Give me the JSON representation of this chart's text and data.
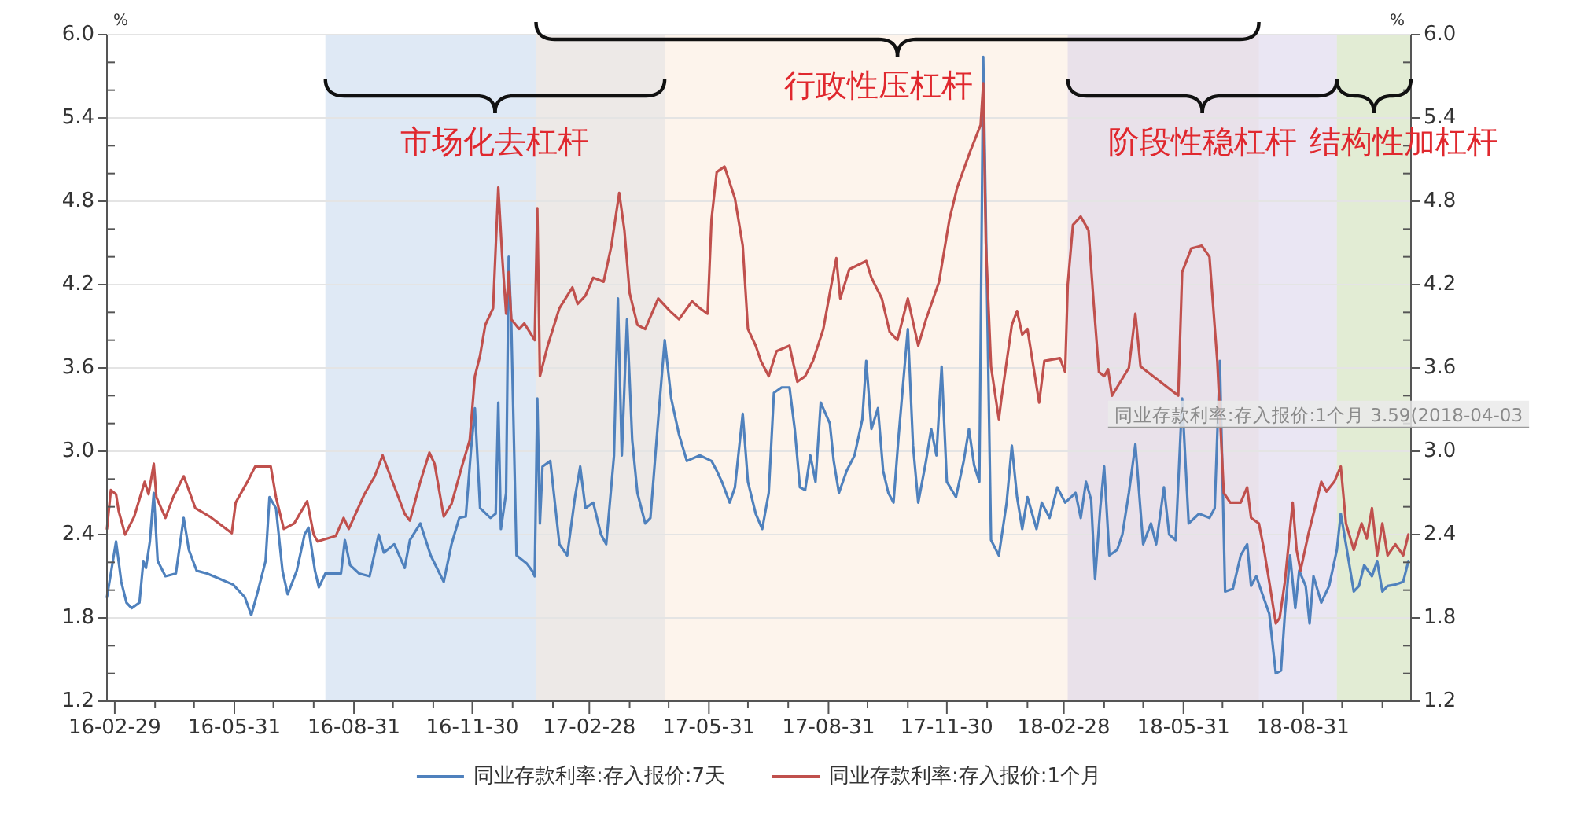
{
  "chart_data": {
    "type": "line",
    "ylabel": "%",
    "y2label": "%",
    "xlim": [
      "2016-02-23",
      "2018-11-22"
    ],
    "ylim": [
      1.2,
      6
    ],
    "y2lim": [
      1.2,
      6
    ],
    "xticks": [
      {
        "value": "2016-02-29",
        "label": "16-02-29"
      },
      {
        "value": "2016-03-31",
        "label": null
      },
      {
        "value": "2016-04-30",
        "label": null
      },
      {
        "value": "2016-05-31",
        "label": "16-05-31"
      },
      {
        "value": "2016-06-30",
        "label": null
      },
      {
        "value": "2016-07-31",
        "label": null
      },
      {
        "value": "2016-08-31",
        "label": "16-08-31"
      },
      {
        "value": "2016-09-30",
        "label": null
      },
      {
        "value": "2016-10-31",
        "label": null
      },
      {
        "value": "2016-11-30",
        "label": "16-11-30"
      },
      {
        "value": "2016-12-31",
        "label": null
      },
      {
        "value": "2017-01-31",
        "label": null
      },
      {
        "value": "2017-02-28",
        "label": "17-02-28"
      },
      {
        "value": "2017-03-31",
        "label": null
      },
      {
        "value": "2017-04-30",
        "label": null
      },
      {
        "value": "2017-05-31",
        "label": "17-05-31"
      },
      {
        "value": "2017-06-30",
        "label": null
      },
      {
        "value": "2017-07-31",
        "label": null
      },
      {
        "value": "2017-08-31",
        "label": "17-08-31"
      },
      {
        "value": "2017-09-30",
        "label": null
      },
      {
        "value": "2017-10-31",
        "label": null
      },
      {
        "value": "2017-11-30",
        "label": "17-11-30"
      },
      {
        "value": "2017-12-31",
        "label": null
      },
      {
        "value": "2018-01-31",
        "label": null
      },
      {
        "value": "2018-02-28",
        "label": "18-02-28"
      },
      {
        "value": "2018-03-31",
        "label": null
      },
      {
        "value": "2018-04-30",
        "label": null
      },
      {
        "value": "2018-05-31",
        "label": "18-05-31"
      },
      {
        "value": "2018-06-30",
        "label": null
      },
      {
        "value": "2018-07-31",
        "label": null
      },
      {
        "value": "2018-08-31",
        "label": "18-08-31"
      },
      {
        "value": "2018-09-30",
        "label": null
      },
      {
        "value": "2018-10-31",
        "label": null
      }
    ],
    "yticks": [
      1.2,
      {
        "value": 1.4,
        "label": null
      },
      {
        "value": 1.6,
        "label": null
      },
      1.8,
      {
        "value": 2.0,
        "label": null
      },
      {
        "value": 2.2,
        "label": null
      },
      2.4,
      {
        "value": 2.6,
        "label": null
      },
      {
        "value": 2.8,
        "label": null
      },
      {
        "value": 3,
        "label": "3.0"
      },
      {
        "value": 3.2,
        "label": null
      },
      {
        "value": 3.4,
        "label": null
      },
      3.6,
      {
        "value": 3.8,
        "label": null
      },
      {
        "value": 4.0,
        "label": null
      },
      4.2,
      {
        "value": 4.4,
        "label": null
      },
      {
        "value": 4.6,
        "label": null
      },
      4.8,
      {
        "value": 5.0,
        "label": null
      },
      {
        "value": 5.2,
        "label": null
      },
      5.4,
      {
        "value": 5.6,
        "label": null
      },
      {
        "value": 5.8,
        "label": null
      },
      {
        "value": 6,
        "label": "6.0"
      }
    ],
    "y2ticks": [
      1.2,
      {
        "value": 1.4,
        "label": null
      },
      {
        "value": 1.6,
        "label": null
      },
      1.8,
      {
        "value": 2.0,
        "label": null
      },
      {
        "value": 2.2,
        "label": null
      },
      2.4,
      {
        "value": 2.6,
        "label": null
      },
      {
        "value": 2.8,
        "label": null
      },
      {
        "value": 3,
        "label": "3.0"
      },
      {
        "value": 3.2,
        "label": null
      },
      {
        "value": 3.4,
        "label": null
      },
      3.6,
      {
        "value": 3.8,
        "label": null
      },
      {
        "value": 4.0,
        "label": null
      },
      4.2,
      {
        "value": 4.4,
        "label": null
      },
      {
        "value": 4.6,
        "label": null
      },
      4.8,
      {
        "value": 5.0,
        "label": null
      },
      {
        "value": 5.2,
        "label": null
      },
      5.4,
      {
        "value": 5.6,
        "label": null
      },
      {
        "value": 5.8,
        "label": null
      },
      {
        "value": 6,
        "label": "6.0"
      }
    ],
    "grid": "y",
    "legend": "bottom",
    "bands": [
      {
        "axis": "x",
        "from": "2016-08-09",
        "to": "2017-04-27",
        "color": "#dfe9f5",
        "label": "市场化去杠杆"
      },
      {
        "axis": "x",
        "from": "2017-01-18",
        "to": "2018-07-28",
        "color": "#fdf4ec",
        "label": "行政性压杠杆"
      },
      {
        "axis": "x",
        "from": "2018-03-03",
        "to": "2018-09-26",
        "color": "#eae6f3",
        "label": "阶段性稳杠杆"
      },
      {
        "axis": "x",
        "from": "2018-09-26",
        "to": "2018-11-22",
        "color": "#e2ecd4",
        "label": "结构性加杠杆"
      }
    ],
    "annotations": [
      {
        "text": "同业存款利率:存入报价:1个月 3.59(2018-04-03",
        "x": "2018-04-03",
        "y": 3.59
      }
    ],
    "series": [
      {
        "name": "同业存款利率:存入报价:7天",
        "color": "#4f81bd",
        "x": [
          "2016-02-23",
          "2016-03-01",
          "2016-03-05",
          "2016-03-09",
          "2016-03-13",
          "2016-03-19",
          "2016-03-22",
          "2016-03-24",
          "2016-03-27",
          "2016-03-30",
          "2016-04-02",
          "2016-04-08",
          "2016-04-16",
          "2016-04-22",
          "2016-04-26",
          "2016-05-02",
          "2016-05-10",
          "2016-05-20",
          "2016-05-30",
          "2016-06-08",
          "2016-06-13",
          "2016-06-18",
          "2016-06-24",
          "2016-06-27",
          "2016-07-02",
          "2016-07-07",
          "2016-07-11",
          "2016-07-18",
          "2016-07-24",
          "2016-07-27",
          "2016-08-01",
          "2016-08-04",
          "2016-08-09",
          "2016-08-21",
          "2016-08-24",
          "2016-08-28",
          "2016-09-04",
          "2016-09-12",
          "2016-09-19",
          "2016-09-23",
          "2016-10-01",
          "2016-10-09",
          "2016-10-13",
          "2016-10-21",
          "2016-10-29",
          "2016-11-08",
          "2016-11-14",
          "2016-11-20",
          "2016-11-25",
          "2016-11-29",
          "2016-12-02",
          "2016-12-06",
          "2016-12-14",
          "2016-12-18",
          "2016-12-20",
          "2016-12-22",
          "2016-12-26",
          "2016-12-28",
          "2016-12-30",
          "2017-01-03",
          "2017-01-11",
          "2017-01-15",
          "2017-01-17",
          "2017-01-19",
          "2017-01-21",
          "2017-01-23",
          "2017-01-29",
          "2017-02-05",
          "2017-02-11",
          "2017-02-17",
          "2017-02-21",
          "2017-02-25",
          "2017-03-03",
          "2017-03-09",
          "2017-03-13",
          "2017-03-19",
          "2017-03-22",
          "2017-03-25",
          "2017-03-29",
          "2017-04-02",
          "2017-04-06",
          "2017-04-12",
          "2017-04-16",
          "2017-04-22",
          "2017-04-27",
          "2017-05-02",
          "2017-05-08",
          "2017-05-14",
          "2017-05-24",
          "2017-06-02",
          "2017-06-06",
          "2017-06-10",
          "2017-06-16",
          "2017-06-20",
          "2017-06-26",
          "2017-06-30",
          "2017-07-06",
          "2017-07-11",
          "2017-07-16",
          "2017-07-20",
          "2017-07-26",
          "2017-08-01",
          "2017-08-05",
          "2017-08-09",
          "2017-08-13",
          "2017-08-17",
          "2017-08-21",
          "2017-08-25",
          "2017-09-01",
          "2017-09-04",
          "2017-09-08",
          "2017-09-14",
          "2017-09-20",
          "2017-09-26",
          "2017-09-29",
          "2017-10-03",
          "2017-10-08",
          "2017-10-12",
          "2017-10-16",
          "2017-10-20",
          "2017-10-24",
          "2017-10-31",
          "2017-11-04",
          "2017-11-08",
          "2017-11-14",
          "2017-11-18",
          "2017-11-22",
          "2017-11-26",
          "2017-11-30",
          "2017-12-07",
          "2017-12-13",
          "2017-12-17",
          "2017-12-21",
          "2017-12-25",
          "2017-12-28",
          "2018-01-03",
          "2018-01-09",
          "2018-01-15",
          "2018-01-19",
          "2018-01-23",
          "2018-01-27",
          "2018-01-31",
          "2018-02-07",
          "2018-02-11",
          "2018-02-17",
          "2018-02-23",
          "2018-03-01",
          "2018-03-09",
          "2018-03-13",
          "2018-03-17",
          "2018-03-21",
          "2018-03-24",
          "2018-03-28",
          "2018-03-31",
          "2018-04-04",
          "2018-04-10",
          "2018-04-14",
          "2018-04-19",
          "2018-04-24",
          "2018-04-30",
          "2018-05-06",
          "2018-05-10",
          "2018-05-16",
          "2018-05-20",
          "2018-05-25",
          "2018-05-30",
          "2018-06-04",
          "2018-06-12",
          "2018-06-20",
          "2018-06-24",
          "2018-06-28",
          "2018-07-02",
          "2018-07-08",
          "2018-07-14",
          "2018-07-19",
          "2018-07-22",
          "2018-07-26",
          "2018-07-30",
          "2018-08-05",
          "2018-08-10",
          "2018-08-14",
          "2018-08-17",
          "2018-08-21",
          "2018-08-25",
          "2018-08-28",
          "2018-09-02",
          "2018-09-05",
          "2018-09-08",
          "2018-09-14",
          "2018-09-20",
          "2018-09-26",
          "2018-09-29",
          "2018-10-03",
          "2018-10-09",
          "2018-10-13",
          "2018-10-17",
          "2018-10-23",
          "2018-10-27",
          "2018-10-31",
          "2018-11-04",
          "2018-11-10",
          "2018-11-16",
          "2018-11-20"
        ],
        "values": [
          1.95,
          2.35,
          2.06,
          1.91,
          1.87,
          1.91,
          2.21,
          2.16,
          2.35,
          2.7,
          2.21,
          2.1,
          2.12,
          2.52,
          2.29,
          2.14,
          2.12,
          2.08,
          2.04,
          1.95,
          1.82,
          1.99,
          2.21,
          2.67,
          2.59,
          2.14,
          1.97,
          2.14,
          2.4,
          2.45,
          2.14,
          2.02,
          2.12,
          2.12,
          2.36,
          2.18,
          2.12,
          2.1,
          2.4,
          2.27,
          2.33,
          2.16,
          2.36,
          2.48,
          2.25,
          2.06,
          2.33,
          2.52,
          2.53,
          3.01,
          3.31,
          2.59,
          2.52,
          2.55,
          3.35,
          2.44,
          2.7,
          4.4,
          3.91,
          2.25,
          2.19,
          2.14,
          2.1,
          3.38,
          2.48,
          2.89,
          2.93,
          2.33,
          2.25,
          2.67,
          2.89,
          2.59,
          2.63,
          2.4,
          2.33,
          2.97,
          4.1,
          2.97,
          3.95,
          3.08,
          2.7,
          2.48,
          2.52,
          3.23,
          3.8,
          3.38,
          3.12,
          2.93,
          2.97,
          2.93,
          2.86,
          2.78,
          2.63,
          2.74,
          3.27,
          2.78,
          2.55,
          2.44,
          2.7,
          3.42,
          3.46,
          3.46,
          3.16,
          2.74,
          2.72,
          2.97,
          2.78,
          3.35,
          3.2,
          2.93,
          2.7,
          2.86,
          2.97,
          3.23,
          3.65,
          3.16,
          3.31,
          2.86,
          2.7,
          2.63,
          3.12,
          3.88,
          3.04,
          2.63,
          2.93,
          3.16,
          2.97,
          3.61,
          2.78,
          2.67,
          2.93,
          3.16,
          2.9,
          2.78,
          5.84,
          2.36,
          2.25,
          2.63,
          3.04,
          2.67,
          2.44,
          2.67,
          2.44,
          2.63,
          2.52,
          2.74,
          2.63,
          2.7,
          2.52,
          2.78,
          2.65,
          2.08,
          2.59,
          2.89,
          2.25,
          2.29,
          2.4,
          2.7,
          3.05,
          2.33,
          2.48,
          2.33,
          2.74,
          2.4,
          2.36,
          3.38,
          2.48,
          2.55,
          2.52,
          2.59,
          3.65,
          1.99,
          2.01,
          2.25,
          2.33,
          2.03,
          2.1,
          1.99,
          1.83,
          1.4,
          1.42,
          1.83,
          2.25,
          1.87,
          2.14,
          2.03,
          1.76,
          2.1,
          1.91,
          2.03,
          2.29,
          2.55,
          2.33,
          1.99,
          2.03,
          2.18,
          2.1,
          2.21,
          1.99,
          2.03,
          2.04,
          2.06,
          2.21
        ]
      },
      {
        "name": "同业存款利率:存入报价:1个月",
        "color": "#c0504d",
        "x": [
          "2016-02-23",
          "2016-02-26",
          "2016-03-01",
          "2016-03-03",
          "2016-03-08",
          "2016-03-15",
          "2016-03-23",
          "2016-03-26",
          "2016-03-30",
          "2016-04-01",
          "2016-04-08",
          "2016-04-14",
          "2016-04-22",
          "2016-04-26",
          "2016-05-01",
          "2016-05-12",
          "2016-05-29",
          "2016-06-01",
          "2016-06-10",
          "2016-06-16",
          "2016-06-28",
          "2016-07-02",
          "2016-07-08",
          "2016-07-16",
          "2016-07-26",
          "2016-07-31",
          "2016-08-03",
          "2016-08-17",
          "2016-08-23",
          "2016-08-27",
          "2016-09-08",
          "2016-09-16",
          "2016-09-22",
          "2016-09-26",
          "2016-10-09",
          "2016-10-13",
          "2016-10-21",
          "2016-10-28",
          "2016-11-01",
          "2016-11-08",
          "2016-11-14",
          "2016-11-22",
          "2016-11-28",
          "2016-12-02",
          "2016-12-06",
          "2016-12-10",
          "2016-12-16",
          "2016-12-20",
          "2016-12-23",
          "2016-12-26",
          "2016-12-28",
          "2016-12-30",
          "2017-01-05",
          "2017-01-09",
          "2017-01-17",
          "2017-01-19",
          "2017-01-21",
          "2017-01-27",
          "2017-02-05",
          "2017-02-15",
          "2017-02-19",
          "2017-02-25",
          "2017-03-03",
          "2017-03-11",
          "2017-03-17",
          "2017-03-23",
          "2017-03-27",
          "2017-03-31",
          "2017-04-06",
          "2017-04-12",
          "2017-04-22",
          "2017-05-01",
          "2017-05-08",
          "2017-05-18",
          "2017-05-24",
          "2017-05-30",
          "2017-06-02",
          "2017-06-06",
          "2017-06-12",
          "2017-06-20",
          "2017-06-26",
          "2017-06-30",
          "2017-07-06",
          "2017-07-10",
          "2017-07-16",
          "2017-07-22",
          "2017-08-01",
          "2017-08-07",
          "2017-08-13",
          "2017-08-19",
          "2017-08-27",
          "2017-09-01",
          "2017-09-06",
          "2017-09-09",
          "2017-09-16",
          "2017-09-29",
          "2017-10-03",
          "2017-10-11",
          "2017-10-17",
          "2017-10-23",
          "2017-10-31",
          "2017-11-08",
          "2017-11-14",
          "2017-11-24",
          "2017-12-02",
          "2017-12-08",
          "2017-12-18",
          "2017-12-26",
          "2017-12-28",
          "2017-12-30",
          "2018-01-03",
          "2018-01-09",
          "2018-01-11",
          "2018-01-19",
          "2018-01-23",
          "2018-01-27",
          "2018-01-31",
          "2018-02-09",
          "2018-02-13",
          "2018-02-25",
          "2018-03-01",
          "2018-03-03",
          "2018-03-07",
          "2018-03-13",
          "2018-03-19",
          "2018-03-23",
          "2018-03-27",
          "2018-03-31",
          "2018-04-03",
          "2018-04-06",
          "2018-04-19",
          "2018-04-24",
          "2018-04-28",
          "2018-05-27",
          "2018-05-30",
          "2018-06-06",
          "2018-06-14",
          "2018-06-20",
          "2018-06-26",
          "2018-07-01",
          "2018-07-06",
          "2018-07-14",
          "2018-07-19",
          "2018-07-22",
          "2018-07-28",
          "2018-08-01",
          "2018-08-05",
          "2018-08-10",
          "2018-08-13",
          "2018-08-17",
          "2018-08-23",
          "2018-08-26",
          "2018-08-29",
          "2018-09-04",
          "2018-09-08",
          "2018-09-14",
          "2018-09-18",
          "2018-09-24",
          "2018-09-29",
          "2018-10-03",
          "2018-10-09",
          "2018-10-15",
          "2018-10-19",
          "2018-10-23",
          "2018-10-27",
          "2018-10-31",
          "2018-11-04",
          "2018-11-10",
          "2018-11-16",
          "2018-11-20"
        ],
        "values": [
          2.44,
          2.72,
          2.69,
          2.57,
          2.4,
          2.53,
          2.78,
          2.69,
          2.91,
          2.67,
          2.52,
          2.67,
          2.82,
          2.72,
          2.59,
          2.53,
          2.41,
          2.63,
          2.78,
          2.89,
          2.89,
          2.67,
          2.44,
          2.48,
          2.64,
          2.4,
          2.35,
          2.39,
          2.52,
          2.44,
          2.69,
          2.82,
          2.97,
          2.87,
          2.55,
          2.5,
          2.78,
          2.99,
          2.91,
          2.53,
          2.62,
          2.89,
          3.08,
          3.54,
          3.69,
          3.91,
          4.03,
          4.9,
          4.4,
          3.99,
          4.29,
          3.95,
          3.88,
          3.92,
          3.8,
          4.75,
          3.54,
          3.76,
          4.03,
          4.18,
          4.06,
          4.12,
          4.25,
          4.22,
          4.48,
          4.86,
          4.59,
          4.14,
          3.91,
          3.88,
          4.1,
          4.01,
          3.95,
          4.08,
          4.03,
          3.99,
          4.67,
          5.01,
          5.05,
          4.82,
          4.48,
          3.88,
          3.76,
          3.65,
          3.54,
          3.72,
          3.76,
          3.5,
          3.54,
          3.65,
          3.88,
          4.14,
          4.39,
          4.1,
          4.31,
          4.37,
          4.25,
          4.1,
          3.86,
          3.8,
          4.1,
          3.76,
          3.95,
          4.22,
          4.67,
          4.9,
          5.16,
          5.35,
          5.65,
          4.5,
          3.61,
          3.23,
          3.38,
          3.91,
          4.01,
          3.84,
          3.88,
          3.35,
          3.65,
          3.67,
          3.57,
          4.2,
          4.63,
          4.69,
          4.59,
          4.06,
          3.57,
          3.54,
          3.59,
          3.4,
          3.6,
          3.99,
          3.61,
          3.4,
          4.29,
          4.46,
          4.48,
          4.4,
          3.65,
          2.7,
          2.63,
          2.63,
          2.74,
          2.52,
          2.48,
          2.29,
          2.06,
          1.76,
          1.8,
          2.06,
          2.63,
          2.29,
          2.14,
          2.4,
          2.55,
          2.78,
          2.71,
          2.78,
          2.89,
          2.48,
          2.29,
          2.48,
          2.37,
          2.59,
          2.25,
          2.48,
          2.25,
          2.33,
          2.25,
          2.4
        ]
      }
    ]
  }
}
